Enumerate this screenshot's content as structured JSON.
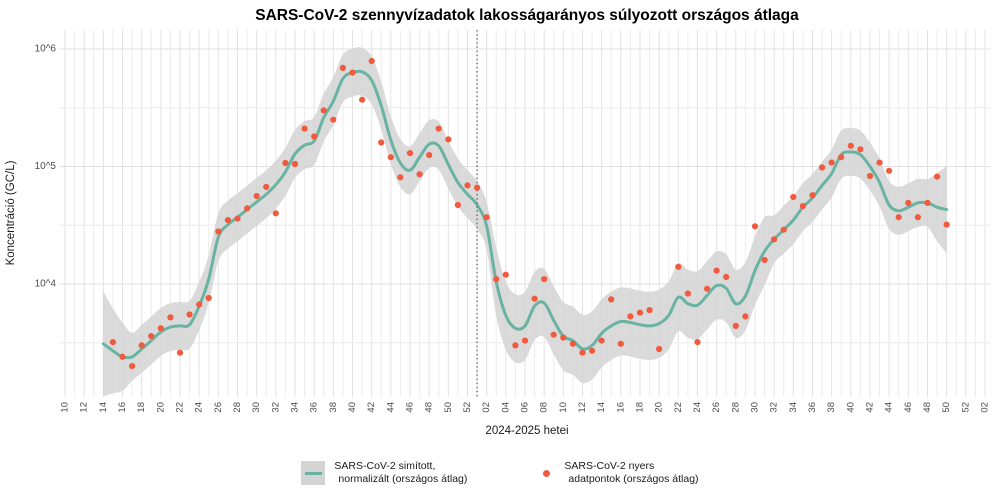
{
  "chart_data": {
    "type": "line",
    "title": "SARS-CoV-2 szennyvízadatok lakosságarányos súlyozott országos átlaga",
    "xlabel": "2024-2025 hetei",
    "ylabel": "Koncentráció (GC/L)",
    "y_scale": "log10",
    "ylim_log10": [
      3.05,
      6.15
    ],
    "grid": "on",
    "legend_position": "bottom",
    "y_ticks": [
      {
        "label": "10^4",
        "value": 10000
      },
      {
        "label": "10^5",
        "value": 100000
      },
      {
        "label": "10^6",
        "value": 1000000
      }
    ],
    "x_start": {
      "year": 2024,
      "week": 10
    },
    "x_tick_step_weeks": 2,
    "x_tick_labels": [
      "10",
      "12",
      "14",
      "16",
      "18",
      "20",
      "22",
      "24",
      "26",
      "28",
      "30",
      "32",
      "34",
      "36",
      "38",
      "40",
      "42",
      "44",
      "46",
      "48",
      "50",
      "52",
      "02",
      "04",
      "06",
      "08",
      "10",
      "12",
      "14",
      "16",
      "18",
      "20",
      "22",
      "24",
      "26",
      "28",
      "30",
      "32",
      "34",
      "36",
      "38",
      "40",
      "42",
      "44",
      "46",
      "48",
      "50",
      "52",
      "02"
    ],
    "year_boundary_line": {
      "at": "2025-W01",
      "style": "dotted",
      "color": "#4d4d4d"
    },
    "band_note": "gray ribbon = approximate confidence band around smoothed line",
    "series": [
      {
        "name": "SARS-CoV-2 simított, normalizált (országos átlag)",
        "type": "line",
        "color": "#69b3a2",
        "band_color": "#d4d4d4",
        "points": [
          [
            2024,
            14,
            3100
          ],
          [
            2024,
            15,
            2700
          ],
          [
            2024,
            16,
            2400
          ],
          [
            2024,
            17,
            2400
          ],
          [
            2024,
            18,
            2800
          ],
          [
            2024,
            19,
            3300
          ],
          [
            2024,
            20,
            3900
          ],
          [
            2024,
            21,
            4300
          ],
          [
            2024,
            22,
            4400
          ],
          [
            2024,
            23,
            4500
          ],
          [
            2024,
            24,
            6500
          ],
          [
            2024,
            25,
            11000
          ],
          [
            2024,
            26,
            25000
          ],
          [
            2024,
            27,
            32000
          ],
          [
            2024,
            28,
            37000
          ],
          [
            2024,
            29,
            43000
          ],
          [
            2024,
            30,
            50000
          ],
          [
            2024,
            31,
            58000
          ],
          [
            2024,
            32,
            70000
          ],
          [
            2024,
            33,
            90000
          ],
          [
            2024,
            34,
            128000
          ],
          [
            2024,
            35,
            152000
          ],
          [
            2024,
            36,
            165000
          ],
          [
            2024,
            37,
            260000
          ],
          [
            2024,
            38,
            360000
          ],
          [
            2024,
            39,
            560000
          ],
          [
            2024,
            40,
            630000
          ],
          [
            2024,
            41,
            640000
          ],
          [
            2024,
            42,
            540000
          ],
          [
            2024,
            43,
            330000
          ],
          [
            2024,
            44,
            168000
          ],
          [
            2024,
            45,
            107000
          ],
          [
            2024,
            46,
            93000
          ],
          [
            2024,
            47,
            120000
          ],
          [
            2024,
            48,
            155000
          ],
          [
            2024,
            49,
            150000
          ],
          [
            2024,
            50,
            104000
          ],
          [
            2024,
            51,
            73000
          ],
          [
            2024,
            52,
            58000
          ],
          [
            2025,
            1,
            47000
          ],
          [
            2025,
            2,
            31000
          ],
          [
            2025,
            3,
            10500
          ],
          [
            2025,
            4,
            5400
          ],
          [
            2025,
            5,
            4200
          ],
          [
            2025,
            6,
            4400
          ],
          [
            2025,
            7,
            6500
          ],
          [
            2025,
            8,
            6900
          ],
          [
            2025,
            9,
            4900
          ],
          [
            2025,
            10,
            3600
          ],
          [
            2025,
            11,
            3300
          ],
          [
            2025,
            12,
            2800
          ],
          [
            2025,
            13,
            3000
          ],
          [
            2025,
            14,
            3800
          ],
          [
            2025,
            15,
            4400
          ],
          [
            2025,
            16,
            4800
          ],
          [
            2025,
            17,
            4700
          ],
          [
            2025,
            18,
            4500
          ],
          [
            2025,
            19,
            4400
          ],
          [
            2025,
            20,
            4600
          ],
          [
            2025,
            21,
            5400
          ],
          [
            2025,
            22,
            7700
          ],
          [
            2025,
            23,
            6800
          ],
          [
            2025,
            24,
            6600
          ],
          [
            2025,
            25,
            8000
          ],
          [
            2025,
            26,
            9700
          ],
          [
            2025,
            27,
            9200
          ],
          [
            2025,
            28,
            6800
          ],
          [
            2025,
            29,
            7900
          ],
          [
            2025,
            30,
            13000
          ],
          [
            2025,
            31,
            19000
          ],
          [
            2025,
            32,
            24000
          ],
          [
            2025,
            33,
            29000
          ],
          [
            2025,
            34,
            35000
          ],
          [
            2025,
            35,
            45000
          ],
          [
            2025,
            36,
            54000
          ],
          [
            2025,
            37,
            69000
          ],
          [
            2025,
            38,
            87000
          ],
          [
            2025,
            39,
            126000
          ],
          [
            2025,
            40,
            133000
          ],
          [
            2025,
            41,
            126000
          ],
          [
            2025,
            42,
            100000
          ],
          [
            2025,
            43,
            73000
          ],
          [
            2025,
            44,
            47000
          ],
          [
            2025,
            45,
            42000
          ],
          [
            2025,
            46,
            45000
          ],
          [
            2025,
            47,
            49000
          ],
          [
            2025,
            48,
            49000
          ],
          [
            2025,
            49,
            45000
          ],
          [
            2025,
            50,
            43000
          ]
        ]
      },
      {
        "name": "SARS-CoV-2 nyers adatpontok (országos átlag)",
        "type": "scatter",
        "color": "#f05a3e",
        "points": [
          [
            2024,
            15,
            3200
          ],
          [
            2024,
            16,
            2400
          ],
          [
            2024,
            17,
            2000
          ],
          [
            2024,
            18,
            3000
          ],
          [
            2024,
            19,
            3600
          ],
          [
            2024,
            20,
            4200
          ],
          [
            2024,
            21,
            5200
          ],
          [
            2024,
            22,
            2600
          ],
          [
            2024,
            23,
            5500
          ],
          [
            2024,
            24,
            6700
          ],
          [
            2024,
            25,
            7600
          ],
          [
            2024,
            26,
            28000
          ],
          [
            2024,
            27,
            35000
          ],
          [
            2024,
            28,
            36000
          ],
          [
            2024,
            29,
            44000
          ],
          [
            2024,
            30,
            56000
          ],
          [
            2024,
            31,
            67000
          ],
          [
            2024,
            32,
            40000
          ],
          [
            2024,
            33,
            107000
          ],
          [
            2024,
            34,
            105000
          ],
          [
            2024,
            35,
            210000
          ],
          [
            2024,
            36,
            180000
          ],
          [
            2024,
            37,
            300000
          ],
          [
            2024,
            38,
            250000
          ],
          [
            2024,
            39,
            690000
          ],
          [
            2024,
            40,
            630000
          ],
          [
            2024,
            41,
            370000
          ],
          [
            2024,
            42,
            790000
          ],
          [
            2024,
            43,
            160000
          ],
          [
            2024,
            44,
            120000
          ],
          [
            2024,
            45,
            81000
          ],
          [
            2024,
            46,
            130000
          ],
          [
            2024,
            47,
            86000
          ],
          [
            2024,
            48,
            125000
          ],
          [
            2024,
            49,
            210000
          ],
          [
            2024,
            50,
            170000
          ],
          [
            2024,
            51,
            47000
          ],
          [
            2024,
            52,
            69000
          ],
          [
            2025,
            1,
            66000
          ],
          [
            2025,
            2,
            37000
          ],
          [
            2025,
            3,
            11000
          ],
          [
            2025,
            4,
            12000
          ],
          [
            2025,
            5,
            3000
          ],
          [
            2025,
            6,
            3300
          ],
          [
            2025,
            7,
            7500
          ],
          [
            2025,
            8,
            11000
          ],
          [
            2025,
            9,
            3700
          ],
          [
            2025,
            10,
            3500
          ],
          [
            2025,
            11,
            3100
          ],
          [
            2025,
            12,
            2600
          ],
          [
            2025,
            13,
            2700
          ],
          [
            2025,
            14,
            3300
          ],
          [
            2025,
            15,
            7400
          ],
          [
            2025,
            16,
            3100
          ],
          [
            2025,
            17,
            5300
          ],
          [
            2025,
            18,
            5700
          ],
          [
            2025,
            19,
            6000
          ],
          [
            2025,
            20,
            2800
          ],
          [
            2025,
            22,
            14000
          ],
          [
            2025,
            23,
            8300
          ],
          [
            2025,
            24,
            3200
          ],
          [
            2025,
            25,
            9100
          ],
          [
            2025,
            26,
            13000
          ],
          [
            2025,
            27,
            11500
          ],
          [
            2025,
            28,
            4400
          ],
          [
            2025,
            29,
            5300
          ],
          [
            2025,
            30,
            31000
          ],
          [
            2025,
            31,
            16000
          ],
          [
            2025,
            32,
            24000
          ],
          [
            2025,
            33,
            29000
          ],
          [
            2025,
            34,
            55000
          ],
          [
            2025,
            35,
            46000
          ],
          [
            2025,
            36,
            57000
          ],
          [
            2025,
            37,
            98000
          ],
          [
            2025,
            38,
            108000
          ],
          [
            2025,
            39,
            120000
          ],
          [
            2025,
            40,
            150000
          ],
          [
            2025,
            41,
            140000
          ],
          [
            2025,
            42,
            83000
          ],
          [
            2025,
            43,
            108000
          ],
          [
            2025,
            44,
            92000
          ],
          [
            2025,
            45,
            37000
          ],
          [
            2025,
            46,
            49000
          ],
          [
            2025,
            47,
            37000
          ],
          [
            2025,
            48,
            49000
          ],
          [
            2025,
            49,
            82000
          ],
          [
            2025,
            50,
            32000
          ]
        ]
      }
    ]
  },
  "legend": {
    "items": [
      {
        "lines": [
          "SARS-CoV-2 simított,",
          "normalizált (országos átlag)"
        ]
      },
      {
        "lines": [
          "SARS-CoV-2 nyers",
          "adatpontok (országos átlag)"
        ]
      }
    ]
  }
}
